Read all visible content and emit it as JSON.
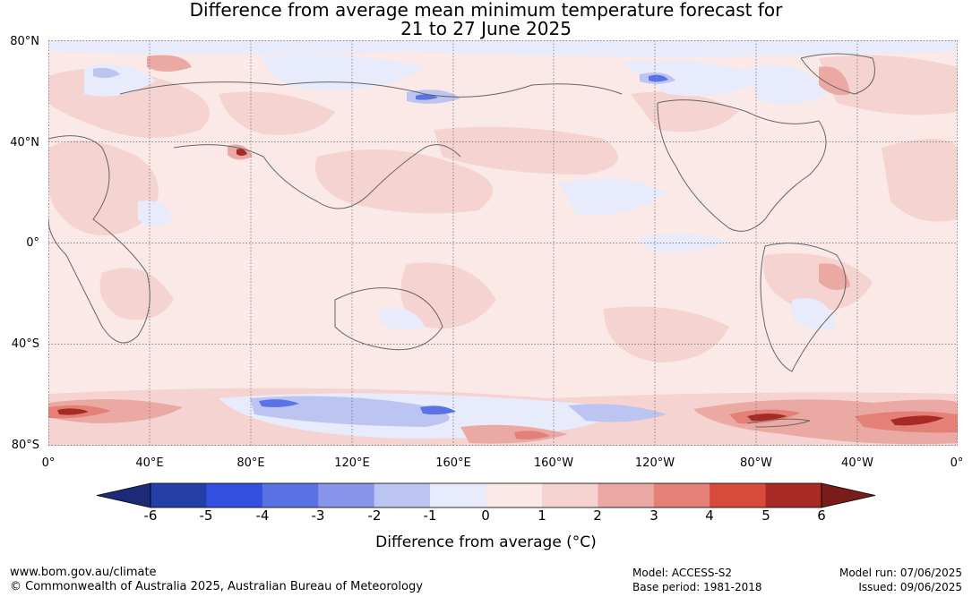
{
  "title": {
    "line1": "Difference from average mean minimum temperature forecast for",
    "line2": "21 to 27 June 2025"
  },
  "axes": {
    "lat_labels": [
      "80°N",
      "40°N",
      "0°",
      "40°S",
      "80°S"
    ],
    "lon_labels": [
      "0°",
      "40°E",
      "80°E",
      "120°E",
      "160°E",
      "160°W",
      "120°W",
      "80°W",
      "40°W",
      "0°"
    ]
  },
  "colorbar": {
    "title": "Difference from average (°C)",
    "ticks": [
      "-6",
      "-5",
      "-4",
      "-3",
      "-2",
      "-1",
      "0",
      "1",
      "2",
      "3",
      "4",
      "5",
      "6"
    ],
    "colors": [
      "#263fa8",
      "#3350e0",
      "#5b72e4",
      "#8796ea",
      "#bcc4f2",
      "#e8ebfb",
      "#fbe9e7",
      "#f4d3d0",
      "#eba9a4",
      "#e48078",
      "#d84a3c",
      "#a82a24"
    ],
    "under_color": "#1c2a78",
    "over_color": "#7a1c1a"
  },
  "footer": {
    "website": "www.bom.gov.au/climate",
    "copyright": "© Commonwealth of Australia 2025, Australian Bureau of Meteorology",
    "model": "Model: ACCESS-S2",
    "base_period": "Base period: 1981-2018",
    "model_run": "Model run: 07/06/2025",
    "issued": "Issued: 09/06/2025"
  },
  "map_data": {
    "projection": "equirectangular",
    "lon_range": [
      0,
      360
    ],
    "lat_range": [
      -80,
      80
    ],
    "background_anomaly": "0 to 1",
    "grid": true
  }
}
